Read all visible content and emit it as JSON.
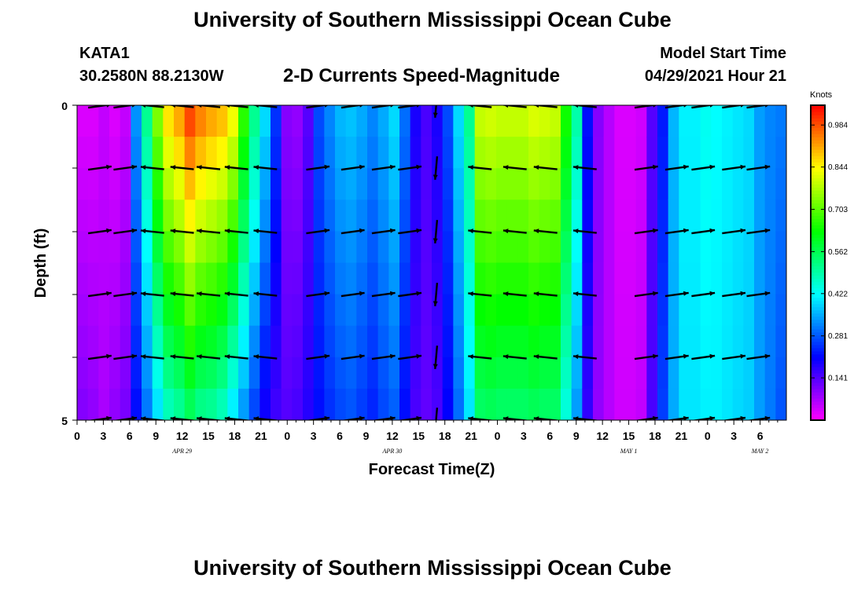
{
  "header": {
    "title": "University of Southern Mississippi Ocean Cube",
    "station_id": "KATA1",
    "station_coords": "30.2580N  88.2130W",
    "plot_title": "2-D Currents Speed-Magnitude",
    "model_start_label": "Model Start Time",
    "model_start_value": "04/29/2021 Hour 21"
  },
  "footer": {
    "title": "University of Southern Mississippi Ocean Cube"
  },
  "chart_data": {
    "type": "heatmap",
    "title": "2-D Currents Speed-Magnitude",
    "xlabel": "Forecast Time(Z)",
    "ylabel": "Depth (ft)",
    "x_hours": [
      0,
      81
    ],
    "ylim": [
      0,
      5
    ],
    "y_ticks": [
      "0",
      "5"
    ],
    "x_tick_labels": [
      "0",
      "3",
      "6",
      "9",
      "12",
      "15",
      "18",
      "21",
      "0",
      "3",
      "6",
      "9",
      "12",
      "15",
      "18",
      "21",
      "0",
      "3",
      "6",
      "9",
      "12",
      "15",
      "18",
      "21",
      "0",
      "3",
      "6"
    ],
    "date_labels": [
      {
        "label": "APR 29",
        "hour": 12
      },
      {
        "label": "APR 30",
        "hour": 36
      },
      {
        "label": "MAY 1",
        "hour": 63
      },
      {
        "label": "MAY 2",
        "hour": 78
      }
    ],
    "colorbar": {
      "unit": "Knots",
      "range": [
        0,
        1.05
      ],
      "ticks": [
        "0.984",
        "0.844",
        "0.703",
        "0.562",
        "0.422",
        "0.281",
        "0.141"
      ],
      "tick_values": [
        0.984,
        0.844,
        0.703,
        0.562,
        0.422,
        0.281,
        0.141
      ]
    },
    "speed_profile_surface": [
      0.03,
      0.03,
      0.05,
      0.03,
      0.05,
      0.33,
      0.51,
      0.73,
      0.86,
      0.91,
      0.99,
      0.94,
      0.91,
      0.89,
      0.83,
      0.66,
      0.51,
      0.39,
      0.25,
      0.1,
      0.09,
      0.14,
      0.27,
      0.32,
      0.36,
      0.37,
      0.35,
      0.32,
      0.35,
      0.39,
      0.3,
      0.19,
      0.15,
      0.19,
      0.27,
      0.39,
      0.51,
      0.79,
      0.8,
      0.79,
      0.79,
      0.79,
      0.81,
      0.8,
      0.79,
      0.64,
      0.49,
      0.22,
      0.1,
      0.06,
      0.03,
      0.03,
      0.04,
      0.14,
      0.23,
      0.36,
      0.41,
      0.41,
      0.43,
      0.42,
      0.41,
      0.4,
      0.39,
      0.34,
      0.32,
      0.31
    ],
    "speed_profile_bottom": [
      0.1,
      0.09,
      0.07,
      0.09,
      0.11,
      0.22,
      0.31,
      0.4,
      0.48,
      0.51,
      0.56,
      0.52,
      0.51,
      0.48,
      0.41,
      0.34,
      0.27,
      0.2,
      0.16,
      0.14,
      0.15,
      0.18,
      0.22,
      0.25,
      0.27,
      0.28,
      0.26,
      0.24,
      0.27,
      0.29,
      0.22,
      0.15,
      0.13,
      0.15,
      0.21,
      0.3,
      0.4,
      0.55,
      0.56,
      0.55,
      0.55,
      0.55,
      0.56,
      0.55,
      0.55,
      0.45,
      0.34,
      0.17,
      0.09,
      0.06,
      0.04,
      0.04,
      0.05,
      0.15,
      0.26,
      0.35,
      0.4,
      0.4,
      0.41,
      0.41,
      0.4,
      0.39,
      0.38,
      0.34,
      0.31,
      0.28
    ]
  }
}
